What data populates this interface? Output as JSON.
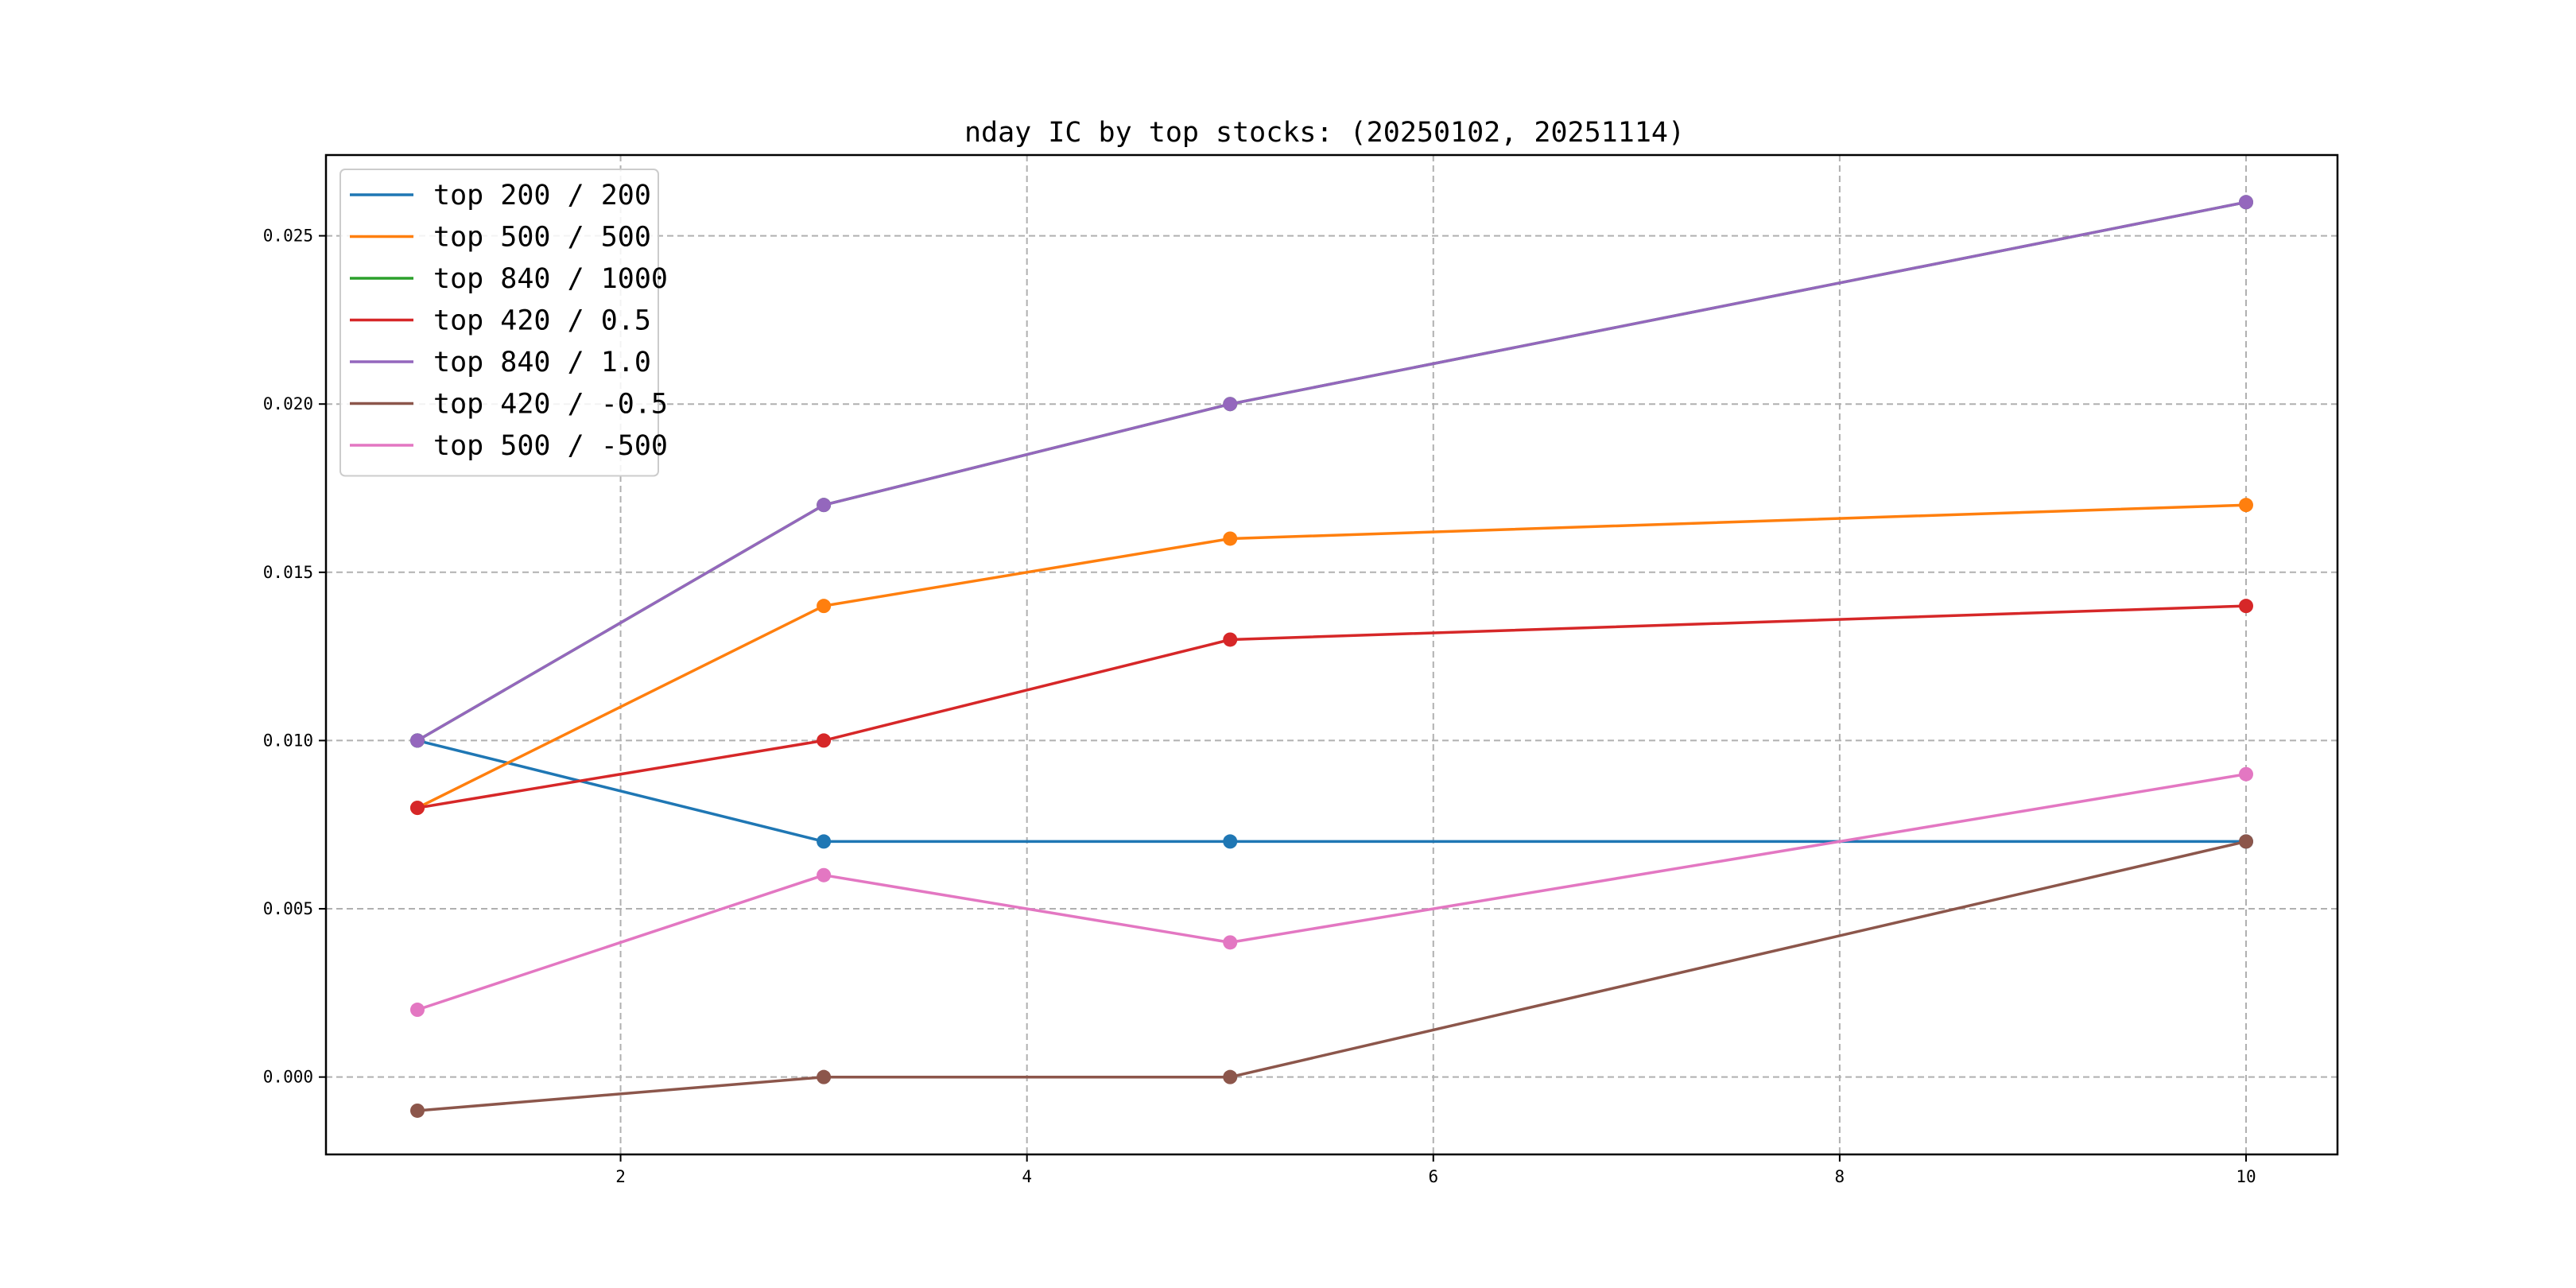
{
  "chart_data": {
    "type": "line",
    "title": "nday IC by top stocks: (20250102, 20251114)",
    "xlabel": "",
    "ylabel": "",
    "x": [
      1,
      3,
      5,
      10
    ],
    "xlim": [
      0.55,
      10.45
    ],
    "ylim": [
      -0.0023,
      0.0274
    ],
    "xticks": [
      2,
      4,
      6,
      8,
      10
    ],
    "xtick_labels": [
      "2",
      "4",
      "6",
      "8",
      "10"
    ],
    "yticks": [
      0.0,
      0.005,
      0.01,
      0.015,
      0.02,
      0.025
    ],
    "ytick_labels": [
      "0.000",
      "0.005",
      "0.010",
      "0.015",
      "0.020",
      "0.025"
    ],
    "grid": true,
    "legend_position": "top-left",
    "markers": true,
    "series": [
      {
        "name": "top 200 / 200",
        "color": "#1f77b4",
        "values": [
          0.01,
          0.007,
          0.007,
          0.007
        ]
      },
      {
        "name": "top 500 / 500",
        "color": "#ff7f0e",
        "values": [
          0.008,
          0.014,
          0.016,
          0.017
        ]
      },
      {
        "name": "top 840 / 1000",
        "color": "#2ca02c",
        "values": [
          0.01,
          0.017,
          0.02,
          0.026
        ]
      },
      {
        "name": "top 420 / 0.5",
        "color": "#d62728",
        "values": [
          0.008,
          0.01,
          0.013,
          0.014
        ]
      },
      {
        "name": "top 840 / 1.0",
        "color": "#9467bd",
        "values": [
          0.01,
          0.017,
          0.02,
          0.026
        ]
      },
      {
        "name": "top 420 / -0.5",
        "color": "#8c564b",
        "values": [
          -0.001,
          0.0,
          0.0,
          0.007
        ]
      },
      {
        "name": "top 500 / -500",
        "color": "#e377c2",
        "values": [
          0.002,
          0.006,
          0.004,
          0.009
        ]
      }
    ]
  }
}
